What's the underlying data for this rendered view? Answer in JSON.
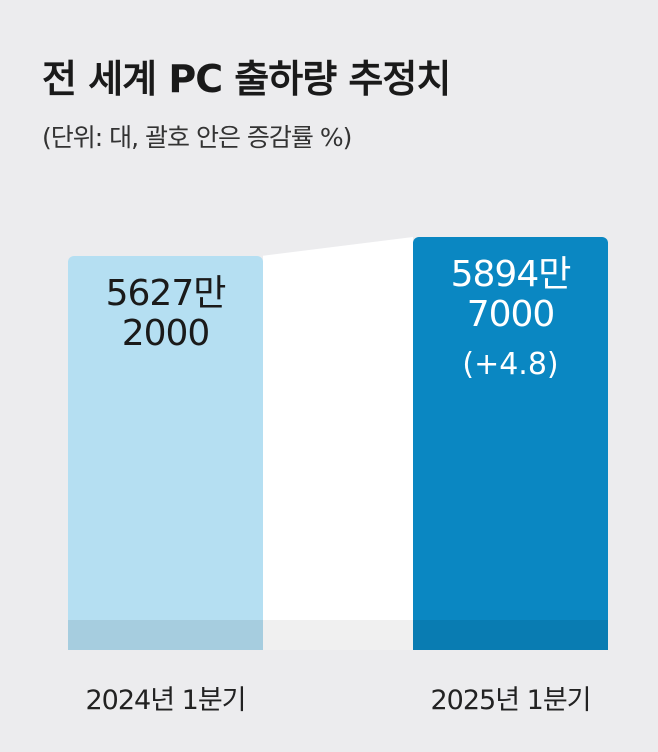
{
  "chart_data": {
    "type": "bar",
    "title": "전 세계 PC 출하량 추정치",
    "subtitle": "(단위: 대, 괄호 안은 증감률 %)",
    "categories": [
      "2024년 1분기",
      "2025년 1분기"
    ],
    "values": [
      56272000,
      58947000
    ],
    "value_labels": [
      "5627만\n2000",
      "5894만\n7000"
    ],
    "annotations": [
      null,
      "(+4.8)"
    ],
    "colors": [
      "#b5dff2",
      "#0a87c2"
    ]
  }
}
